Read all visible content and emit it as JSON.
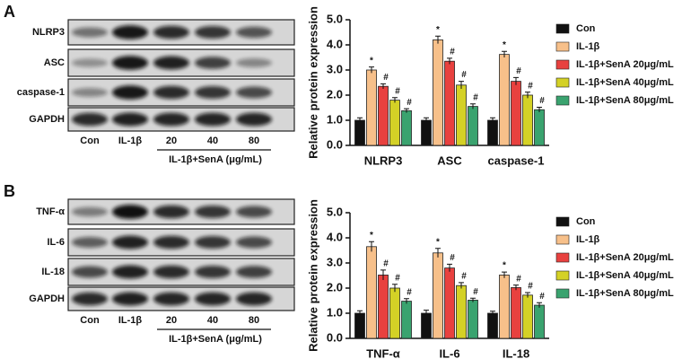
{
  "panels": [
    {
      "label": "A",
      "blot": {
        "rows": [
          "NLRP3",
          "ASC",
          "caspase-1",
          "GAPDH"
        ],
        "lanes": [
          "Con",
          "IL-1β",
          "20",
          "40",
          "80"
        ],
        "group_label": "IL-1β+SenA (μg/mL)"
      }
    },
    {
      "label": "B",
      "blot": {
        "rows": [
          "TNF-α",
          "IL-6",
          "IL-18",
          "GAPDH"
        ],
        "lanes": [
          "Con",
          "IL-1β",
          "20",
          "40",
          "80"
        ],
        "group_label": "IL-1β+SenA (μg/mL)"
      }
    }
  ],
  "chart_data": [
    {
      "type": "bar",
      "ylabel": "Relative protein expression",
      "categories": [
        "NLRP3",
        "ASC",
        "caspase-1"
      ],
      "ylim": [
        0,
        5
      ],
      "yticks": [
        {
          "value": 0,
          "label": "0.0"
        },
        {
          "value": 1,
          "label": "1.0"
        },
        {
          "value": 2,
          "label": "2.0"
        },
        {
          "value": 3,
          "label": "3.0"
        },
        {
          "value": 4,
          "label": "4.0"
        },
        {
          "value": 5,
          "label": "5.0"
        }
      ],
      "legend": "right",
      "series": [
        {
          "name": "Con",
          "color": "#111111",
          "values": [
            1.0,
            1.0,
            1.0
          ],
          "errors": [
            0.1,
            0.1,
            0.1
          ]
        },
        {
          "name": "IL-1β",
          "color": "#f7c08a",
          "values": [
            3.0,
            4.2,
            3.62
          ],
          "errors": [
            0.12,
            0.15,
            0.12
          ],
          "annotation": "*"
        },
        {
          "name": "IL-1β+SenA 20μg/mL",
          "color": "#e8413f",
          "values": [
            2.35,
            3.35,
            2.55
          ],
          "errors": [
            0.1,
            0.12,
            0.15
          ],
          "annotation": "#"
        },
        {
          "name": "IL-1β+SenA 40μg/mL",
          "color": "#d4d126",
          "values": [
            1.8,
            2.4,
            2.0
          ],
          "errors": [
            0.1,
            0.15,
            0.12
          ],
          "annotation": "#"
        },
        {
          "name": "IL-1β+SenA 80μg/mL",
          "color": "#3aa36f",
          "values": [
            1.38,
            1.55,
            1.42
          ],
          "errors": [
            0.08,
            0.1,
            0.1
          ],
          "annotation": "#"
        }
      ]
    },
    {
      "type": "bar",
      "ylabel": "Relative protein expression",
      "categories": [
        "TNF-α",
        "IL-6",
        "IL-18"
      ],
      "ylim": [
        0,
        5
      ],
      "yticks": [
        {
          "value": 0,
          "label": "0.0"
        },
        {
          "value": 1,
          "label": "1.0"
        },
        {
          "value": 2,
          "label": "2.0"
        },
        {
          "value": 3,
          "label": "3.0"
        },
        {
          "value": 4,
          "label": "4.0"
        },
        {
          "value": 5,
          "label": "5.0"
        }
      ],
      "legend": "right",
      "series": [
        {
          "name": "Con",
          "color": "#111111",
          "values": [
            1.0,
            1.0,
            1.0
          ],
          "errors": [
            0.1,
            0.12,
            0.08
          ]
        },
        {
          "name": "IL-1β",
          "color": "#f7c08a",
          "values": [
            3.65,
            3.4,
            2.52
          ],
          "errors": [
            0.2,
            0.18,
            0.12
          ],
          "annotation": "*"
        },
        {
          "name": "IL-1β+SenA 20μg/mL",
          "color": "#e8413f",
          "values": [
            2.52,
            2.8,
            2.02
          ],
          "errors": [
            0.2,
            0.15,
            0.1
          ],
          "annotation": "#"
        },
        {
          "name": "IL-1β+SenA 40μg/mL",
          "color": "#d4d126",
          "values": [
            2.0,
            2.1,
            1.72
          ],
          "errors": [
            0.15,
            0.12,
            0.1
          ],
          "annotation": "#"
        },
        {
          "name": "IL-1β+SenA 80μg/mL",
          "color": "#3aa36f",
          "values": [
            1.48,
            1.52,
            1.32
          ],
          "errors": [
            0.1,
            0.08,
            0.1
          ],
          "annotation": "#"
        }
      ]
    }
  ]
}
